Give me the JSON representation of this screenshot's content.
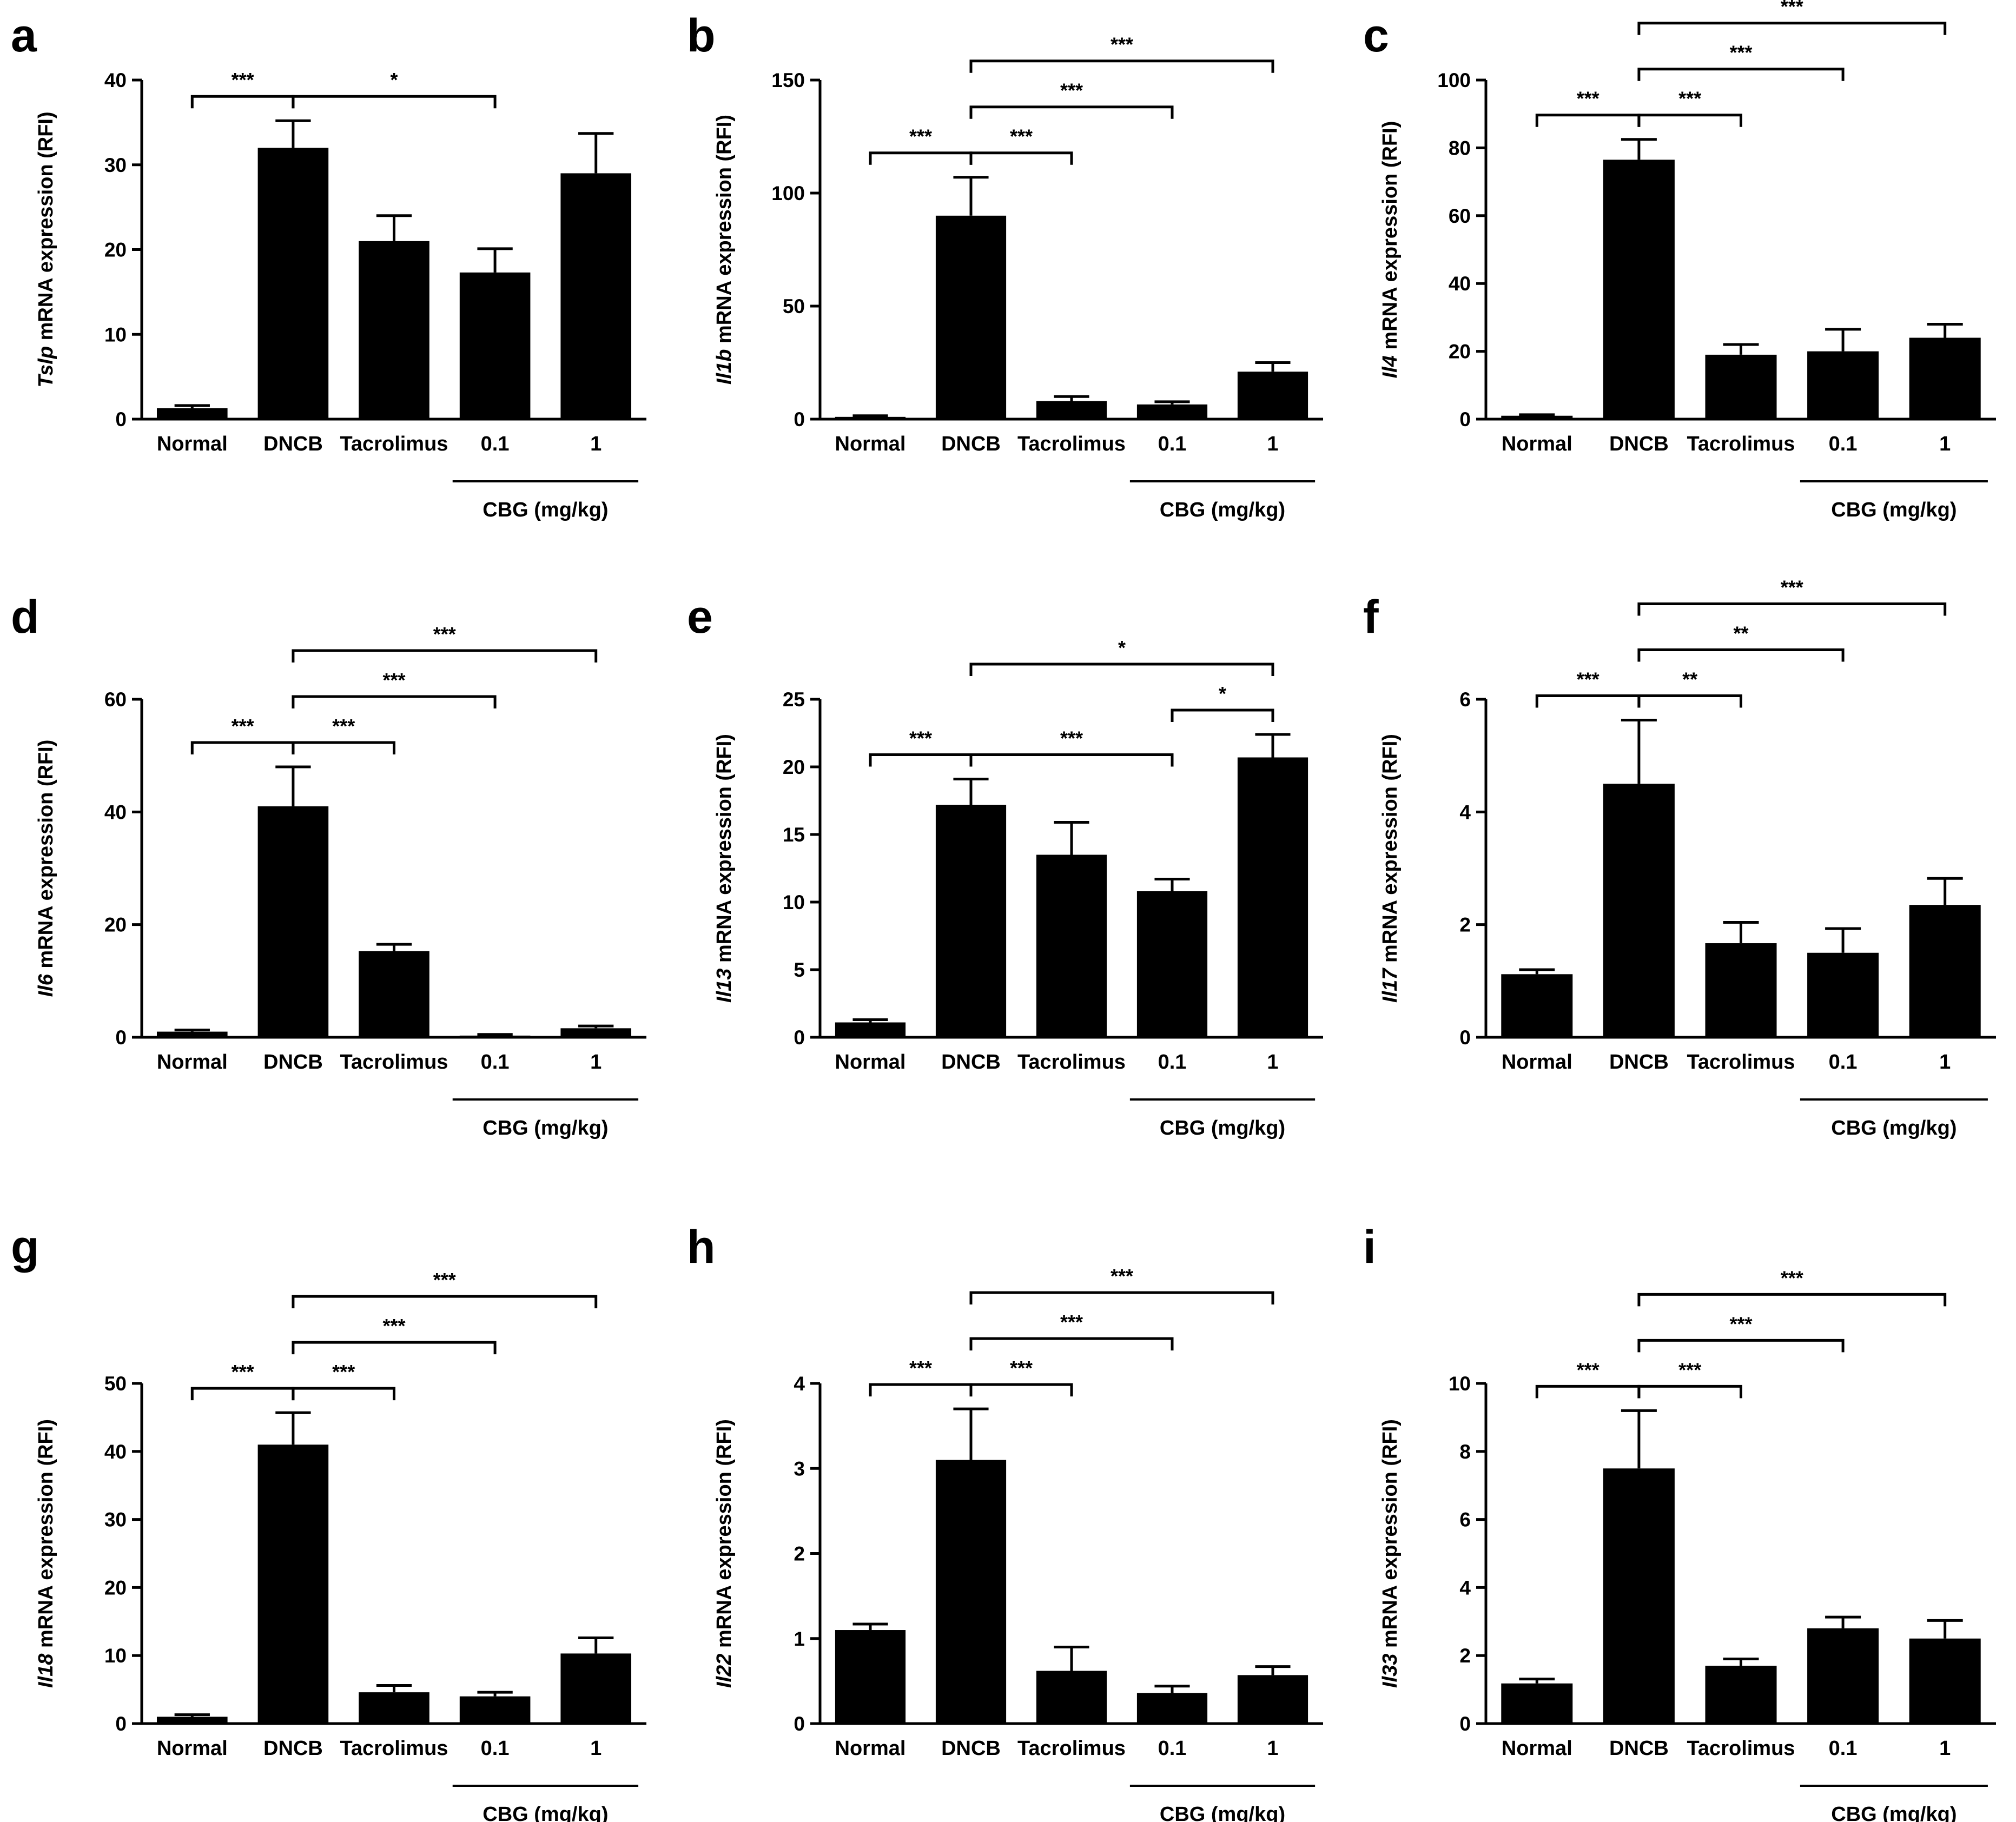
{
  "figure": {
    "colors": {
      "bar": "#000000",
      "axis": "#000000",
      "background": "#ffffff"
    }
  },
  "chart_data": [
    {
      "panel": "a",
      "type": "bar",
      "gene": "Tslp",
      "ylabel_suffix": " mRNA expression  (RFI)",
      "categories": [
        "Normal",
        "DNCB",
        "Tacrolimus",
        "0.1",
        "1"
      ],
      "group_label": "CBG (mg/kg)",
      "values": [
        1.3,
        32,
        21,
        17.3,
        29
      ],
      "errors": [
        0.3,
        3.2,
        3.0,
        2.8,
        4.7
      ],
      "ylim": [
        0,
        40
      ],
      "yticks": [
        "0",
        "10",
        "20",
        "30",
        "40"
      ],
      "comparisons": [
        {
          "from": 0,
          "to": 1,
          "label": "***"
        },
        {
          "from": 1,
          "to": 3,
          "label": "*"
        }
      ]
    },
    {
      "panel": "b",
      "type": "bar",
      "gene": "Il1b",
      "ylabel_suffix": " mRNA expression  (RFI)",
      "categories": [
        "Normal",
        "DNCB",
        "Tacrolimus",
        "0.1",
        "1"
      ],
      "group_label": "CBG (mg/kg)",
      "values": [
        1.0,
        90,
        8,
        6.5,
        21
      ],
      "errors": [
        0.5,
        17,
        2,
        1.2,
        4
      ],
      "ylim": [
        0,
        150
      ],
      "yticks": [
        "0",
        "50",
        "100",
        "150"
      ],
      "comparisons": [
        {
          "from": 0,
          "to": 1,
          "label": "***"
        },
        {
          "from": 1,
          "to": 2,
          "label": "***"
        },
        {
          "from": 1,
          "to": 3,
          "label": "***"
        },
        {
          "from": 1,
          "to": 4,
          "label": "***"
        }
      ]
    },
    {
      "panel": "c",
      "type": "bar",
      "gene": "Il4",
      "ylabel_suffix": " mRNA expression  (RFI)",
      "categories": [
        "Normal",
        "DNCB",
        "Tacrolimus",
        "0.1",
        "1"
      ],
      "group_label": "CBG (mg/kg)",
      "values": [
        1.0,
        76.5,
        19,
        20,
        24
      ],
      "errors": [
        0.3,
        6,
        3,
        6.5,
        4
      ],
      "ylim": [
        0,
        100
      ],
      "yticks": [
        "0",
        "20",
        "40",
        "60",
        "80",
        "100"
      ],
      "comparisons": [
        {
          "from": 0,
          "to": 1,
          "label": "***"
        },
        {
          "from": 1,
          "to": 2,
          "label": "***"
        },
        {
          "from": 1,
          "to": 3,
          "label": "***"
        },
        {
          "from": 1,
          "to": 4,
          "label": "***"
        }
      ]
    },
    {
      "panel": "d",
      "type": "bar",
      "gene": "Il6",
      "ylabel_suffix": " mRNA expression  (RFI)",
      "categories": [
        "Normal",
        "DNCB",
        "Tacrolimus",
        "0.1",
        "1"
      ],
      "group_label": "CBG (mg/kg)",
      "values": [
        1.0,
        41,
        15.3,
        0.3,
        1.6
      ],
      "errors": [
        0.3,
        7,
        1.2,
        0.2,
        0.4
      ],
      "ylim": [
        0,
        60
      ],
      "yticks": [
        "0",
        "20",
        "40",
        "60"
      ],
      "comparisons": [
        {
          "from": 0,
          "to": 1,
          "label": "***"
        },
        {
          "from": 1,
          "to": 2,
          "label": "***"
        },
        {
          "from": 1,
          "to": 3,
          "label": "***"
        },
        {
          "from": 1,
          "to": 4,
          "label": "***"
        }
      ]
    },
    {
      "panel": "e",
      "type": "bar",
      "gene": "Il13",
      "ylabel_suffix": " mRNA expression  (RFI)",
      "categories": [
        "Normal",
        "DNCB",
        "Tacrolimus",
        "0.1",
        "1"
      ],
      "group_label": "CBG (mg/kg)",
      "values": [
        1.1,
        17.2,
        13.5,
        10.8,
        20.7
      ],
      "errors": [
        0.2,
        1.9,
        2.4,
        0.9,
        1.7
      ],
      "ylim": [
        0,
        25
      ],
      "yticks": [
        "0",
        "5",
        "10",
        "15",
        "20",
        "25"
      ],
      "comparisons": [
        {
          "from": 0,
          "to": 1,
          "label": "***"
        },
        {
          "from": 1,
          "to": 3,
          "label": "***"
        },
        {
          "from": 3,
          "to": 4,
          "label": "*"
        },
        {
          "from": 1,
          "to": 4,
          "label": "*"
        }
      ]
    },
    {
      "panel": "f",
      "type": "bar",
      "gene": "Il17",
      "ylabel_suffix": " mRNA expression  (RFI)",
      "categories": [
        "Normal",
        "DNCB",
        "Tacrolimus",
        "0.1",
        "1"
      ],
      "group_label": "CBG (mg/kg)",
      "values": [
        1.12,
        4.5,
        1.67,
        1.5,
        2.35
      ],
      "errors": [
        0.08,
        1.13,
        0.37,
        0.43,
        0.47
      ],
      "ylim": [
        0,
        6
      ],
      "yticks": [
        "0",
        "2",
        "4",
        "6"
      ],
      "comparisons": [
        {
          "from": 0,
          "to": 1,
          "label": "***"
        },
        {
          "from": 1,
          "to": 2,
          "label": "**"
        },
        {
          "from": 1,
          "to": 3,
          "label": "**"
        },
        {
          "from": 1,
          "to": 4,
          "label": "***"
        }
      ]
    },
    {
      "panel": "g",
      "type": "bar",
      "gene": "Il18",
      "ylabel_suffix": " mRNA expression  (RFI)",
      "categories": [
        "Normal",
        "DNCB",
        "Tacrolimus",
        "0.1",
        "1"
      ],
      "group_label": "CBG (mg/kg)",
      "values": [
        1.0,
        41,
        4.6,
        4.0,
        10.3
      ],
      "errors": [
        0.3,
        4.7,
        1.0,
        0.6,
        2.3
      ],
      "ylim": [
        0,
        50
      ],
      "yticks": [
        "0",
        "10",
        "20",
        "30",
        "40",
        "50"
      ],
      "comparisons": [
        {
          "from": 0,
          "to": 1,
          "label": "***"
        },
        {
          "from": 1,
          "to": 2,
          "label": "***"
        },
        {
          "from": 1,
          "to": 3,
          "label": "***"
        },
        {
          "from": 1,
          "to": 4,
          "label": "***"
        }
      ]
    },
    {
      "panel": "h",
      "type": "bar",
      "gene": "Il22",
      "ylabel_suffix": " mRNA expression  (RFI)",
      "categories": [
        "Normal",
        "DNCB",
        "Tacrolimus",
        "0.1",
        "1"
      ],
      "group_label": "CBG (mg/kg)",
      "values": [
        1.1,
        3.1,
        0.62,
        0.36,
        0.57
      ],
      "errors": [
        0.07,
        0.6,
        0.28,
        0.08,
        0.1
      ],
      "ylim": [
        0,
        4
      ],
      "yticks": [
        "0",
        "1",
        "2",
        "3",
        "4"
      ],
      "comparisons": [
        {
          "from": 0,
          "to": 1,
          "label": "***"
        },
        {
          "from": 1,
          "to": 2,
          "label": "***"
        },
        {
          "from": 1,
          "to": 3,
          "label": "***"
        },
        {
          "from": 1,
          "to": 4,
          "label": "***"
        }
      ]
    },
    {
      "panel": "i",
      "type": "bar",
      "gene": "Il33",
      "ylabel_suffix": " mRNA expression  (RFI)",
      "categories": [
        "Normal",
        "DNCB",
        "Tacrolimus",
        "0.1",
        "1"
      ],
      "group_label": "CBG (mg/kg)",
      "values": [
        1.18,
        7.5,
        1.7,
        2.8,
        2.5
      ],
      "errors": [
        0.13,
        1.7,
        0.2,
        0.33,
        0.53
      ],
      "ylim": [
        0,
        10
      ],
      "yticks": [
        "0",
        "2",
        "4",
        "6",
        "8",
        "10"
      ],
      "comparisons": [
        {
          "from": 0,
          "to": 1,
          "label": "***"
        },
        {
          "from": 1,
          "to": 2,
          "label": "***"
        },
        {
          "from": 1,
          "to": 3,
          "label": "***"
        },
        {
          "from": 1,
          "to": 4,
          "label": "***"
        }
      ]
    }
  ]
}
